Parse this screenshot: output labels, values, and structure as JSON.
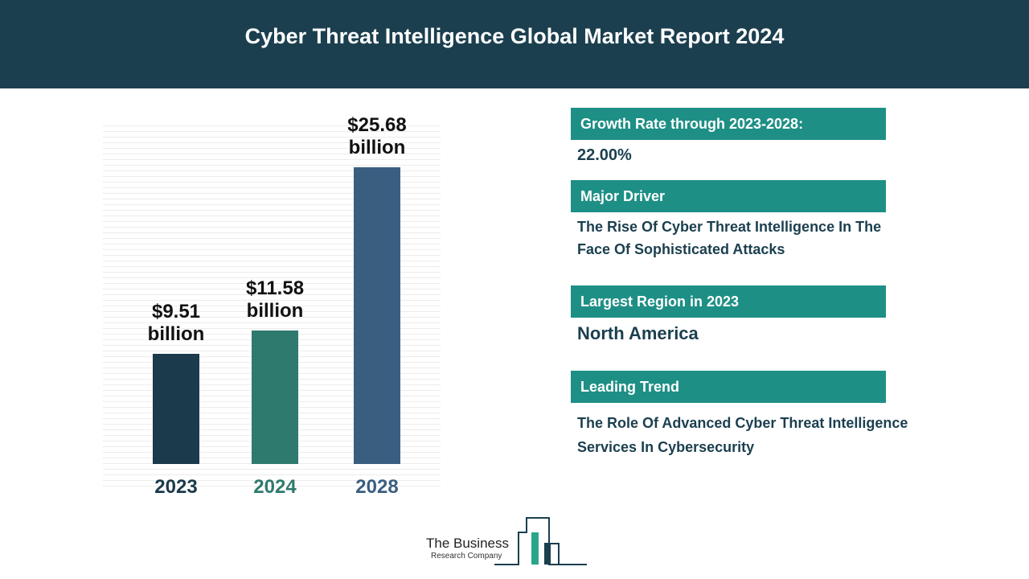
{
  "title": "Cyber Threat Intelligence Global Market Report 2024",
  "chart_data": {
    "type": "bar",
    "categories": [
      "2023",
      "2024",
      "2028"
    ],
    "values": [
      9.51,
      11.58,
      25.68
    ],
    "value_labels": [
      "$9.51 billion",
      "$11.58 billion",
      "$25.68 billion"
    ],
    "colors": [
      "#1b3a4b",
      "#2e7a6e",
      "#3a5e80"
    ]
  },
  "panels": [
    {
      "heading": "Growth Rate through 2023-2028:",
      "body": "22.00%"
    },
    {
      "heading": "Major Driver",
      "body": "The Rise Of Cyber Threat Intelligence In The Face Of Sophisticated Attacks"
    },
    {
      "heading": "Largest Region in 2023",
      "body": "North America"
    },
    {
      "heading": "Leading Trend",
      "body": "The Role Of Advanced Cyber Threat Intelligence Services In Cybersecurity"
    }
  ],
  "logo": {
    "name": "The Business",
    "subname": "Research Company"
  }
}
